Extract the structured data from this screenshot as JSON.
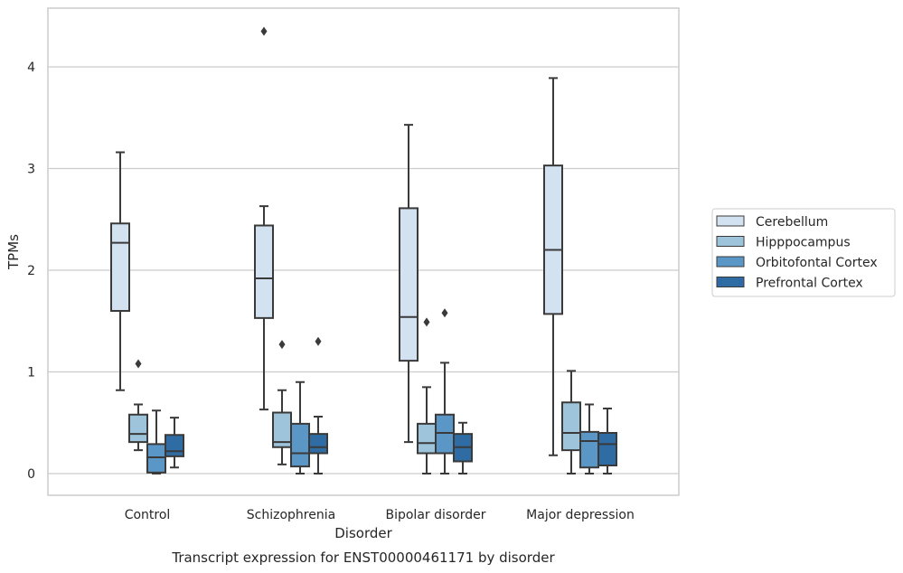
{
  "chart_data": {
    "type": "boxplot",
    "caption": "Transcript expression for ENST00000461171 by disorder",
    "xlabel": "Disorder",
    "ylabel": "TPMs",
    "ylim": [
      -0.21,
      4.58
    ],
    "yticks": [
      0,
      1,
      2,
      3,
      4
    ],
    "grid": "horizontal",
    "legend_position": "right",
    "categories": [
      "Control",
      "Schizophrenia",
      "Bipolar disorder",
      "Major depression"
    ],
    "series": [
      {
        "name": "Cerebellum",
        "color": "#d2e2f1",
        "boxes": [
          {
            "whislo": 0.82,
            "q1": 1.6,
            "med": 2.27,
            "q3": 2.46,
            "whishi": 3.16,
            "fliers": []
          },
          {
            "whislo": 0.63,
            "q1": 1.53,
            "med": 1.92,
            "q3": 2.44,
            "whishi": 2.63,
            "fliers": [
              4.35
            ]
          },
          {
            "whislo": 0.31,
            "q1": 1.11,
            "med": 1.54,
            "q3": 2.61,
            "whishi": 3.43,
            "fliers": []
          },
          {
            "whislo": 0.18,
            "q1": 1.57,
            "med": 2.2,
            "q3": 3.03,
            "whishi": 3.89,
            "fliers": []
          }
        ]
      },
      {
        "name": "Hipppocampus",
        "color": "#9dc4db",
        "boxes": [
          {
            "whislo": 0.23,
            "q1": 0.31,
            "med": 0.39,
            "q3": 0.58,
            "whishi": 0.68,
            "fliers": [
              1.08
            ]
          },
          {
            "whislo": 0.09,
            "q1": 0.26,
            "med": 0.31,
            "q3": 0.6,
            "whishi": 0.82,
            "fliers": [
              1.27
            ]
          },
          {
            "whislo": 0.0,
            "q1": 0.2,
            "med": 0.3,
            "q3": 0.49,
            "whishi": 0.85,
            "fliers": [
              1.49
            ]
          },
          {
            "whislo": 0.0,
            "q1": 0.23,
            "med": 0.4,
            "q3": 0.7,
            "whishi": 1.01,
            "fliers": []
          }
        ]
      },
      {
        "name": "Orbitofontal Cortex",
        "color": "#5a97c6",
        "boxes": [
          {
            "whislo": 0.0,
            "q1": 0.01,
            "med": 0.16,
            "q3": 0.29,
            "whishi": 0.62,
            "fliers": []
          },
          {
            "whislo": 0.0,
            "q1": 0.07,
            "med": 0.2,
            "q3": 0.49,
            "whishi": 0.9,
            "fliers": []
          },
          {
            "whislo": 0.0,
            "q1": 0.2,
            "med": 0.4,
            "q3": 0.58,
            "whishi": 1.09,
            "fliers": [
              1.58
            ]
          },
          {
            "whislo": 0.0,
            "q1": 0.06,
            "med": 0.32,
            "q3": 0.41,
            "whishi": 0.68,
            "fliers": []
          }
        ]
      },
      {
        "name": "Prefrontal Cortex",
        "color": "#2f6ca4",
        "boxes": [
          {
            "whislo": 0.06,
            "q1": 0.17,
            "med": 0.22,
            "q3": 0.38,
            "whishi": 0.55,
            "fliers": []
          },
          {
            "whislo": 0.0,
            "q1": 0.2,
            "med": 0.26,
            "q3": 0.39,
            "whishi": 0.56,
            "fliers": [
              1.3
            ]
          },
          {
            "whislo": 0.0,
            "q1": 0.12,
            "med": 0.26,
            "q3": 0.39,
            "whishi": 0.5,
            "fliers": []
          },
          {
            "whislo": 0.0,
            "q1": 0.08,
            "med": 0.29,
            "q3": 0.4,
            "whishi": 0.64,
            "fliers": []
          }
        ]
      }
    ]
  }
}
